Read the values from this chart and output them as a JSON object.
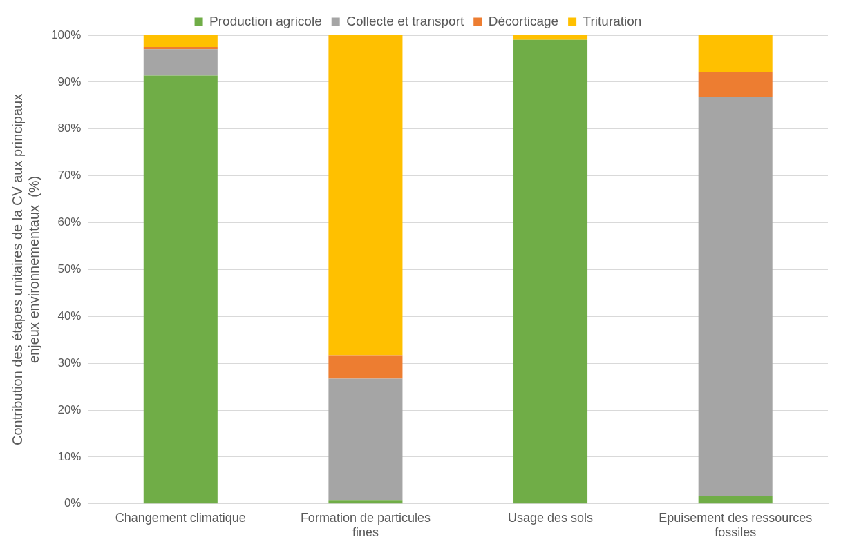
{
  "chart_data": {
    "type": "bar",
    "stacked": true,
    "ylabel": "Contribution des étapes unitaires de la CV aux principaux enjeux environnementaux  (%)",
    "categories": [
      "Changement climatique",
      "Formation de particules fines",
      "Usage des sols",
      "Epuisement des ressources fossiles"
    ],
    "series": [
      {
        "name": "Production agricole",
        "color": "#70ad47",
        "values": [
          91.4,
          0.8,
          99.0,
          1.6
        ]
      },
      {
        "name": "Collecte et transport",
        "color": "#a5a5a5",
        "values": [
          5.6,
          25.9,
          0,
          85.3
        ]
      },
      {
        "name": "Décorticage",
        "color": "#ed7d31",
        "values": [
          0.5,
          5.0,
          0,
          5.2
        ]
      },
      {
        "name": "Trituration",
        "color": "#ffc000",
        "values": [
          2.5,
          68.3,
          1.0,
          7.9
        ]
      }
    ],
    "ylim": [
      0,
      100
    ],
    "yticks": [
      {
        "value": 0,
        "label": "0%"
      },
      {
        "value": 10,
        "label": "10%"
      },
      {
        "value": 20,
        "label": "20%"
      },
      {
        "value": 30,
        "label": "30%"
      },
      {
        "value": 40,
        "label": "40%"
      },
      {
        "value": 50,
        "label": "50%"
      },
      {
        "value": 60,
        "label": "60%"
      },
      {
        "value": 70,
        "label": "70%"
      },
      {
        "value": 80,
        "label": "80%"
      },
      {
        "value": 90,
        "label": "90%"
      },
      {
        "value": 100,
        "label": "100%"
      }
    ],
    "grid": "y",
    "legend": "top"
  }
}
